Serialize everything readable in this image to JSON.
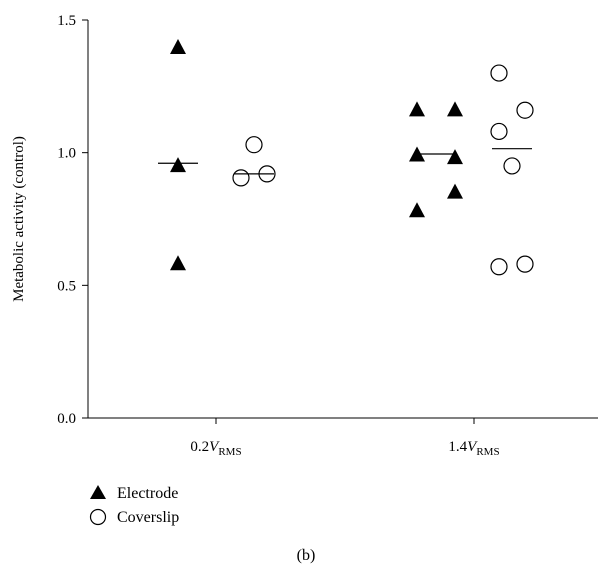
{
  "chart_data": {
    "type": "scatter",
    "ylabel": "Metabolic activity (control)",
    "ylim": [
      0,
      1.5
    ],
    "yticks": [
      "0.0",
      "0.5",
      "1.0",
      "1.5"
    ],
    "categories": [
      {
        "main": "0.2",
        "var": "V",
        "sub": "RMS"
      },
      {
        "main": "1.4",
        "var": "V",
        "sub": "RMS"
      }
    ],
    "series": [
      {
        "name": "Electrode",
        "marker": "filled-triangle",
        "color": "#000000",
        "groups": [
          [
            1.4,
            0.955,
            0.585
          ],
          [
            1.165,
            1.165,
            0.995,
            0.985,
            0.855,
            0.785
          ]
        ],
        "means": [
          0.96,
          0.995
        ]
      },
      {
        "name": "Coverslip",
        "marker": "open-circle",
        "color": "#000000",
        "groups": [
          [
            1.03,
            0.905,
            0.92
          ],
          [
            1.3,
            1.08,
            1.16,
            0.95,
            0.57,
            0.58
          ]
        ],
        "means": [
          0.92,
          1.015
        ]
      }
    ],
    "panel_label": "(b)"
  }
}
